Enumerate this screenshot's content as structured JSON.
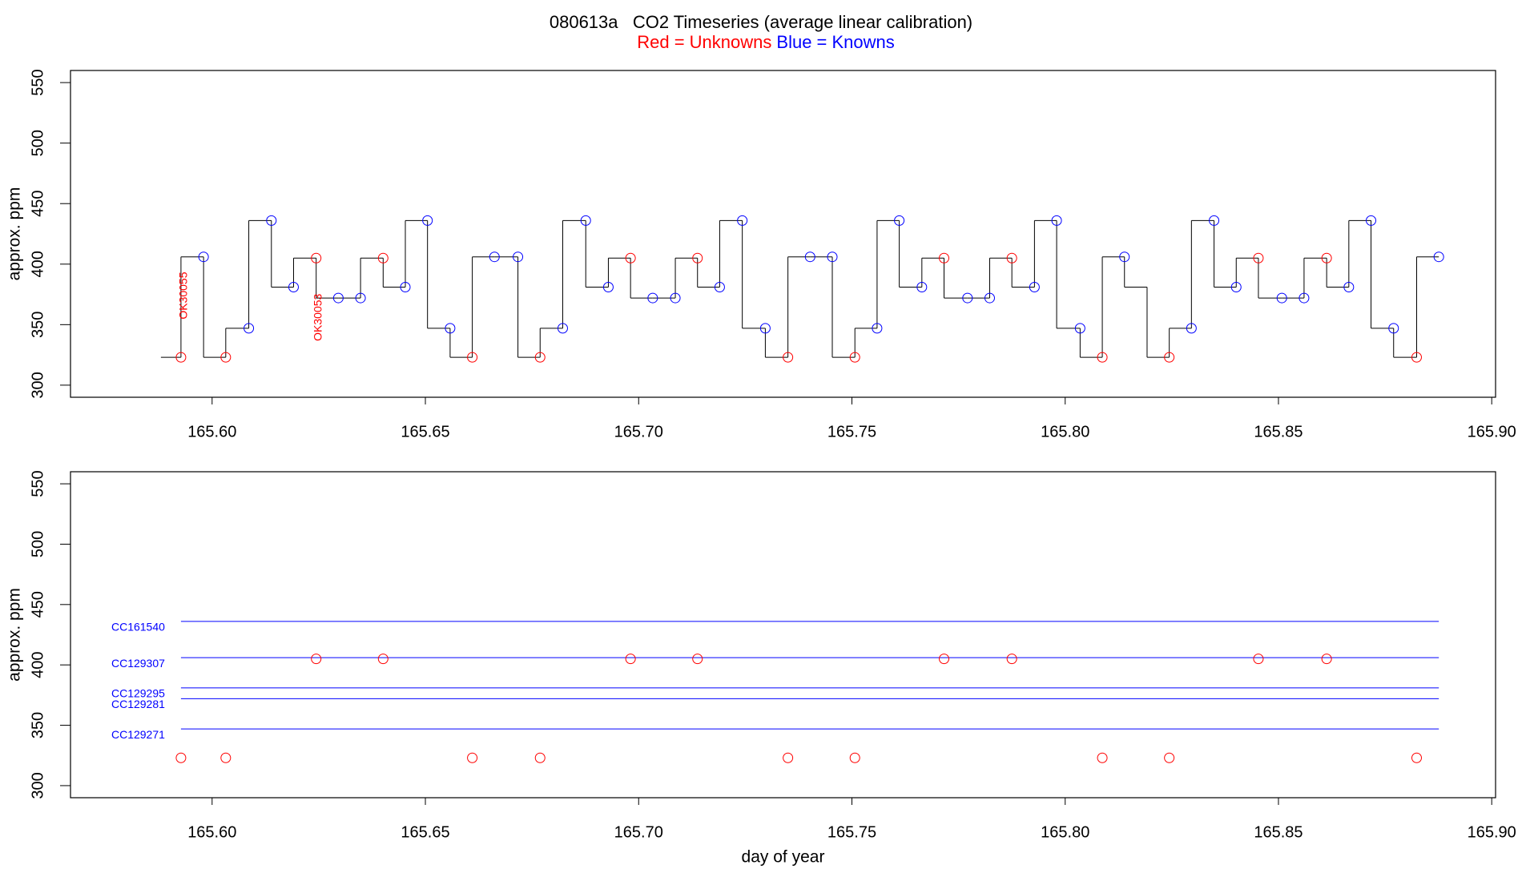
{
  "chart_data": [
    {
      "type": "line",
      "title": "080613a   CO2 Timeseries (average linear calibration)",
      "legend": [
        {
          "text": "Red = Unknowns",
          "color": "#ff0000"
        },
        {
          "text": "Blue = Knowns",
          "color": "#0000ff"
        }
      ],
      "ylabel": "approx. ppm",
      "xlim": [
        165.5668,
        165.9009
      ],
      "ylim": [
        290,
        560
      ],
      "xticks": [
        {
          "value": 165.6,
          "label": "165.60"
        },
        {
          "value": 165.65,
          "label": "165.65"
        },
        {
          "value": 165.7,
          "label": "165.70"
        },
        {
          "value": 165.75,
          "label": "165.75"
        },
        {
          "value": 165.8,
          "label": "165.80"
        },
        {
          "value": 165.85,
          "label": "165.85"
        },
        {
          "value": 165.9,
          "label": "165.90"
        }
      ],
      "yticks": [
        300,
        350,
        400,
        450,
        500,
        550
      ],
      "series": [
        {
          "style": "step",
          "color": "#000000",
          "x": [
            165.588,
            165.5927,
            165.598,
            165.6032,
            165.6086,
            165.6139,
            165.6191,
            165.6244,
            165.6296,
            165.6348,
            165.6401,
            165.6453,
            165.6505,
            165.6558,
            165.661,
            165.6662,
            165.6717,
            165.6769,
            165.6822,
            165.6876,
            165.6929,
            165.6981,
            165.7033,
            165.7086,
            165.7138,
            165.719,
            165.7243,
            165.7297,
            165.735,
            165.7402,
            165.7454,
            165.7507,
            165.7559,
            165.7611,
            165.7664,
            165.7716,
            165.7771,
            165.7823,
            165.7875,
            165.7928,
            165.798,
            165.8035,
            165.8087,
            165.8139,
            165.8192,
            165.8244,
            165.8296,
            165.8349,
            165.8401,
            165.8453,
            165.8508,
            165.856,
            165.8613,
            165.8665,
            165.8717,
            165.877,
            165.8824,
            165.8876
          ],
          "values": [
            323,
            323,
            406,
            323,
            347,
            436,
            381,
            405,
            372,
            372,
            405,
            381,
            436,
            347,
            323,
            406,
            406,
            323,
            347,
            436,
            381,
            405,
            372,
            372,
            405,
            381,
            436,
            347,
            323,
            406,
            406,
            323,
            347,
            436,
            381,
            405,
            372,
            372,
            405,
            381,
            436,
            347,
            323,
            406,
            381,
            323,
            347,
            436,
            381,
            405,
            372,
            372,
            405,
            381,
            436,
            347,
            323,
            406
          ]
        },
        {
          "style": "points",
          "color": "#ff0000",
          "x": [
            165.5927,
            165.6032,
            165.6244,
            165.6401,
            165.661,
            165.6769,
            165.6981,
            165.7138,
            165.735,
            165.7507,
            165.7716,
            165.7875,
            165.8087,
            165.8244,
            165.8453,
            165.8613,
            165.8824
          ],
          "values": [
            323,
            323,
            405,
            405,
            323,
            323,
            405,
            405,
            323,
            323,
            405,
            405,
            323,
            323,
            405,
            405,
            323
          ]
        },
        {
          "style": "points",
          "color": "#0000ff",
          "x": [
            165.598,
            165.6086,
            165.6139,
            165.6191,
            165.6296,
            165.6348,
            165.6453,
            165.6505,
            165.6558,
            165.6662,
            165.6717,
            165.6822,
            165.6876,
            165.6929,
            165.7033,
            165.7086,
            165.719,
            165.7243,
            165.7297,
            165.7402,
            165.7454,
            165.7559,
            165.7611,
            165.7664,
            165.7771,
            165.7823,
            165.7928,
            165.798,
            165.8035,
            165.8139,
            165.8296,
            165.8349,
            165.8401,
            165.8508,
            165.856,
            165.8665,
            165.8717,
            165.877,
            165.8876
          ],
          "values": [
            406,
            347,
            436,
            381,
            372,
            372,
            381,
            436,
            347,
            406,
            406,
            347,
            436,
            381,
            372,
            372,
            381,
            436,
            347,
            406,
            406,
            347,
            436,
            381,
            372,
            372,
            381,
            436,
            347,
            406,
            347,
            436,
            381,
            372,
            372,
            381,
            436,
            347,
            406
          ]
        }
      ],
      "annotations": [
        {
          "text": "OK30055",
          "x": 165.5934,
          "y": 374,
          "color": "#ff0000"
        },
        {
          "text": "OK30053",
          "x": 165.625,
          "y": 356,
          "color": "#ff0000"
        }
      ]
    },
    {
      "type": "scatter",
      "xlabel": "day of year",
      "ylabel": "approx. ppm",
      "xlim": [
        165.5668,
        165.9009
      ],
      "ylim": [
        290,
        560
      ],
      "xticks": [
        {
          "value": 165.6,
          "label": "165.60"
        },
        {
          "value": 165.65,
          "label": "165.65"
        },
        {
          "value": 165.7,
          "label": "165.70"
        },
        {
          "value": 165.75,
          "label": "165.75"
        },
        {
          "value": 165.8,
          "label": "165.80"
        },
        {
          "value": 165.85,
          "label": "165.85"
        },
        {
          "value": 165.9,
          "label": "165.90"
        }
      ],
      "yticks": [
        300,
        350,
        400,
        450,
        500,
        550
      ],
      "series": [
        {
          "style": "points",
          "color": "#ff0000",
          "x": [
            165.5927,
            165.6032,
            165.6244,
            165.6401,
            165.661,
            165.6769,
            165.6981,
            165.7138,
            165.735,
            165.7507,
            165.7716,
            165.7875,
            165.8087,
            165.8244,
            165.8453,
            165.8613,
            165.8824
          ],
          "values": [
            323,
            323,
            405,
            405,
            323,
            323,
            405,
            405,
            323,
            323,
            405,
            405,
            323,
            323,
            405,
            405,
            323
          ]
        }
      ],
      "hlines": [
        {
          "label": "CC161540",
          "value": 436,
          "x": [
            165.5927,
            165.8876
          ],
          "color": "#0000ff"
        },
        {
          "label": "CC129307",
          "value": 406,
          "x": [
            165.5927,
            165.8876
          ],
          "color": "#0000ff"
        },
        {
          "label": "CC129295",
          "value": 381,
          "x": [
            165.5927,
            165.8876
          ],
          "color": "#0000ff"
        },
        {
          "label": "CC129281",
          "value": 372,
          "x": [
            165.5927,
            165.8876
          ],
          "color": "#0000ff"
        },
        {
          "label": "CC129271",
          "value": 347,
          "x": [
            165.5927,
            165.8876
          ],
          "color": "#0000ff"
        }
      ]
    }
  ]
}
